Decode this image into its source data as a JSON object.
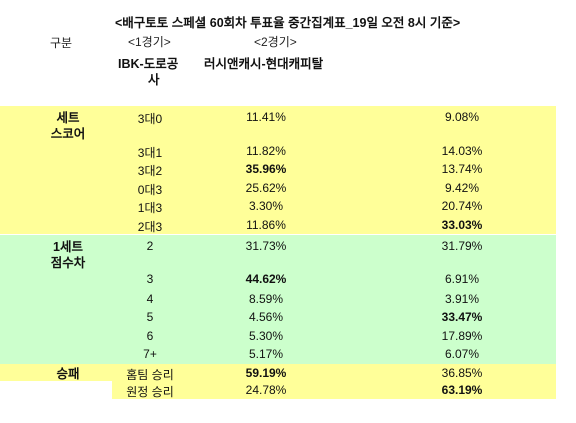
{
  "title": "<배구토토 스페셜 60회차 투표율 중간집계표_19일 오전 8시 기준>",
  "header": {
    "category_label": "구분",
    "game1_label": "<1경기>",
    "game2_label": "<2경기>",
    "team1_line1": "IBK-도로공",
    "team1_line2": "사",
    "team2": "러시앤캐시-현대캐피탈"
  },
  "sections": {
    "set_score": {
      "line1": "세트",
      "line2": "스코어"
    },
    "set_diff": {
      "line1": "1세트",
      "line2": "점수차"
    },
    "win_loss": {
      "line1": "승패"
    }
  },
  "rows": [
    {
      "label": "3대0",
      "g1": "11.41%",
      "g2": "9.08%"
    },
    {
      "label": "3대1",
      "g1": "11.82%",
      "g2": "14.03%"
    },
    {
      "label": "3대2",
      "g1": "35.96%",
      "g2": "13.74%"
    },
    {
      "label": "0대3",
      "g1": "25.62%",
      "g2": "9.42%"
    },
    {
      "label": "1대3",
      "g1": "3.30%",
      "g2": "20.74%"
    },
    {
      "label": "2대3",
      "g1": "11.86%",
      "g2": "33.03%"
    },
    {
      "label": "2",
      "g1": "31.73%",
      "g2": "31.79%"
    },
    {
      "label": "3",
      "g1": "44.62%",
      "g2": "6.91%"
    },
    {
      "label": "4",
      "g1": "8.59%",
      "g2": "3.91%"
    },
    {
      "label": "5",
      "g1": "4.56%",
      "g2": "33.47%"
    },
    {
      "label": "6",
      "g1": "5.30%",
      "g2": "17.89%"
    },
    {
      "label": "7+",
      "g1": "5.17%",
      "g2": "6.07%"
    },
    {
      "label": "홈팀 승리",
      "g1": "59.19%",
      "g2": "36.85%"
    },
    {
      "label": "원정 승리",
      "g1": "24.78%",
      "g2": "63.19%"
    }
  ],
  "colors": {
    "yellow": "#ffff99",
    "green": "#ccffcc"
  }
}
